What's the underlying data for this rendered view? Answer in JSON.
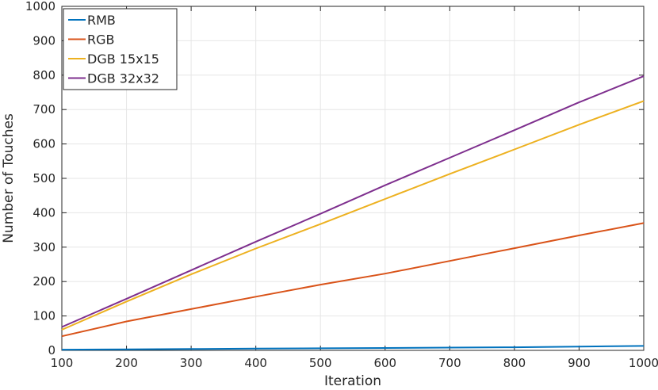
{
  "chart_data": {
    "type": "line",
    "title": "",
    "xlabel": "Iteration",
    "ylabel": "Number of Touches",
    "xlim": [
      100,
      1000
    ],
    "ylim": [
      0,
      1000
    ],
    "x_ticks": [
      100,
      200,
      300,
      400,
      500,
      600,
      700,
      800,
      900,
      1000
    ],
    "y_ticks": [
      0,
      100,
      200,
      300,
      400,
      500,
      600,
      700,
      800,
      900,
      1000
    ],
    "grid": true,
    "legend_position": "top-left",
    "x": [
      100,
      200,
      300,
      400,
      500,
      600,
      700,
      800,
      900,
      1000
    ],
    "series": [
      {
        "name": "RMB",
        "color": "#0072BD",
        "values": [
          2,
          3,
          4,
          5,
          6,
          7,
          8,
          9,
          11,
          13
        ]
      },
      {
        "name": "RGB",
        "color": "#D95319",
        "values": [
          41,
          84,
          120,
          156,
          191,
          223,
          260,
          297,
          334,
          370
        ]
      },
      {
        "name": "DGB 15x15",
        "color": "#EDB120",
        "values": [
          60,
          142,
          221,
          296,
          367,
          440,
          513,
          584,
          656,
          725
        ]
      },
      {
        "name": "DGB 32x32",
        "color": "#7E2F8E",
        "values": [
          68,
          150,
          233,
          316,
          397,
          480,
          560,
          640,
          721,
          797
        ]
      }
    ]
  }
}
